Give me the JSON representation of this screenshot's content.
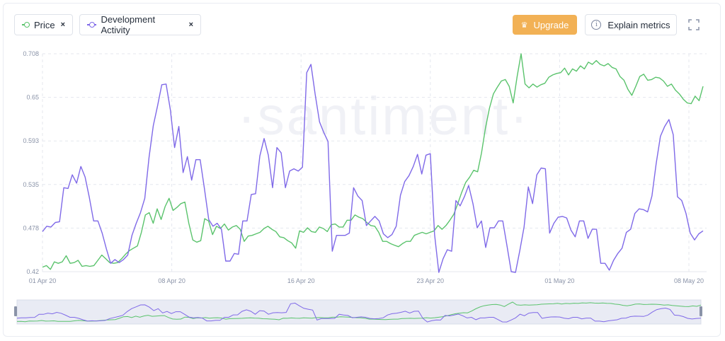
{
  "legend": [
    {
      "label": "Price",
      "close": "×",
      "color": "#5ac36c"
    },
    {
      "label": "Development Activity",
      "close": "×",
      "color": "#7f69e8"
    }
  ],
  "toolbar": {
    "upgrade_label": "Upgrade",
    "upgrade_icon": "crown-icon",
    "explain_label": "Explain metrics",
    "explain_icon": "info-icon",
    "fullscreen_icon": "fullscreen-icon"
  },
  "watermark": "·santiment·",
  "chart_data": {
    "type": "line",
    "x_ticks": [
      "01 Apr 20",
      "08 Apr 20",
      "16 Apr 20",
      "23 Apr 20",
      "01 May 20",
      "08 May 20"
    ],
    "y_ticks": [
      "0.708",
      "0.65",
      "0.593",
      "0.535",
      "0.478",
      "0.42"
    ],
    "ylim": [
      0.42,
      0.708
    ],
    "grid": true,
    "series": [
      {
        "name": "Price",
        "color": "#5ac36c",
        "values": [
          0.426,
          0.428,
          0.423,
          0.433,
          0.431,
          0.433,
          0.441,
          0.431,
          0.432,
          0.435,
          0.427,
          0.428,
          0.427,
          0.428,
          0.435,
          0.442,
          0.437,
          0.432,
          0.431,
          0.432,
          0.437,
          0.443,
          0.448,
          0.451,
          0.454,
          0.472,
          0.495,
          0.498,
          0.484,
          0.503,
          0.489,
          0.506,
          0.517,
          0.501,
          0.505,
          0.51,
          0.512,
          0.484,
          0.462,
          0.459,
          0.461,
          0.49,
          0.487,
          0.469,
          0.48,
          0.477,
          0.483,
          0.475,
          0.479,
          0.481,
          0.476,
          0.46,
          0.467,
          0.468,
          0.47,
          0.472,
          0.477,
          0.48,
          0.476,
          0.473,
          0.466,
          0.465,
          0.461,
          0.458,
          0.451,
          0.474,
          0.472,
          0.478,
          0.473,
          0.472,
          0.479,
          0.477,
          0.473,
          0.482,
          0.483,
          0.479,
          0.479,
          0.488,
          0.488,
          0.495,
          0.492,
          0.49,
          0.485,
          0.481,
          0.48,
          0.472,
          0.46,
          0.46,
          0.457,
          0.455,
          0.453,
          0.457,
          0.46,
          0.46,
          0.468,
          0.47,
          0.472,
          0.47,
          0.472,
          0.474,
          0.481,
          0.476,
          0.481,
          0.488,
          0.496,
          0.51,
          0.525,
          0.538,
          0.545,
          0.554,
          0.552,
          0.577,
          0.61,
          0.636,
          0.655,
          0.664,
          0.672,
          0.674,
          0.665,
          0.643,
          0.678,
          0.708,
          0.668,
          0.663,
          0.668,
          0.664,
          0.667,
          0.669,
          0.677,
          0.68,
          0.682,
          0.683,
          0.689,
          0.68,
          0.688,
          0.685,
          0.692,
          0.688,
          0.697,
          0.694,
          0.699,
          0.694,
          0.692,
          0.695,
          0.69,
          0.688,
          0.678,
          0.673,
          0.661,
          0.653,
          0.665,
          0.678,
          0.681,
          0.673,
          0.674,
          0.677,
          0.676,
          0.672,
          0.665,
          0.668,
          0.66,
          0.655,
          0.648,
          0.643,
          0.642,
          0.652,
          0.646,
          0.665
        ]
      },
      {
        "name": "Development Activity",
        "color": "#7f69e8",
        "values": [
          0.473,
          0.48,
          0.479,
          0.485,
          0.486,
          0.531,
          0.53,
          0.548,
          0.537,
          0.559,
          0.545,
          0.518,
          0.487,
          0.487,
          0.471,
          0.45,
          0.431,
          0.436,
          0.432,
          0.436,
          0.442,
          0.468,
          0.484,
          0.498,
          0.517,
          0.571,
          0.613,
          0.639,
          0.667,
          0.668,
          0.634,
          0.584,
          0.612,
          0.551,
          0.572,
          0.541,
          0.568,
          0.568,
          0.53,
          0.489,
          0.48,
          0.484,
          0.476,
          0.434,
          0.434,
          0.444,
          0.443,
          0.487,
          0.487,
          0.522,
          0.523,
          0.573,
          0.596,
          0.574,
          0.531,
          0.584,
          0.577,
          0.531,
          0.553,
          0.556,
          0.553,
          0.558,
          0.683,
          0.694,
          0.654,
          0.618,
          0.604,
          0.592,
          0.447,
          0.468,
          0.468,
          0.468,
          0.471,
          0.531,
          0.52,
          0.514,
          0.481,
          0.487,
          0.493,
          0.487,
          0.47,
          0.465,
          0.469,
          0.48,
          0.521,
          0.539,
          0.547,
          0.559,
          0.575,
          0.549,
          0.574,
          0.576,
          0.469,
          0.419,
          0.437,
          0.449,
          0.447,
          0.514,
          0.507,
          0.519,
          0.534,
          0.51,
          0.478,
          0.487,
          0.452,
          0.478,
          0.478,
          0.487,
          0.487,
          0.454,
          0.42,
          0.419,
          0.448,
          0.479,
          0.532,
          0.51,
          0.548,
          0.557,
          0.556,
          0.471,
          0.484,
          0.492,
          0.493,
          0.491,
          0.475,
          0.466,
          0.487,
          0.487,
          0.464,
          0.476,
          0.476,
          0.431,
          0.431,
          0.422,
          0.435,
          0.444,
          0.451,
          0.472,
          0.476,
          0.497,
          0.503,
          0.502,
          0.499,
          0.52,
          0.563,
          0.599,
          0.612,
          0.621,
          0.601,
          0.519,
          0.514,
          0.497,
          0.471,
          0.462,
          0.47,
          0.474
        ]
      }
    ]
  }
}
